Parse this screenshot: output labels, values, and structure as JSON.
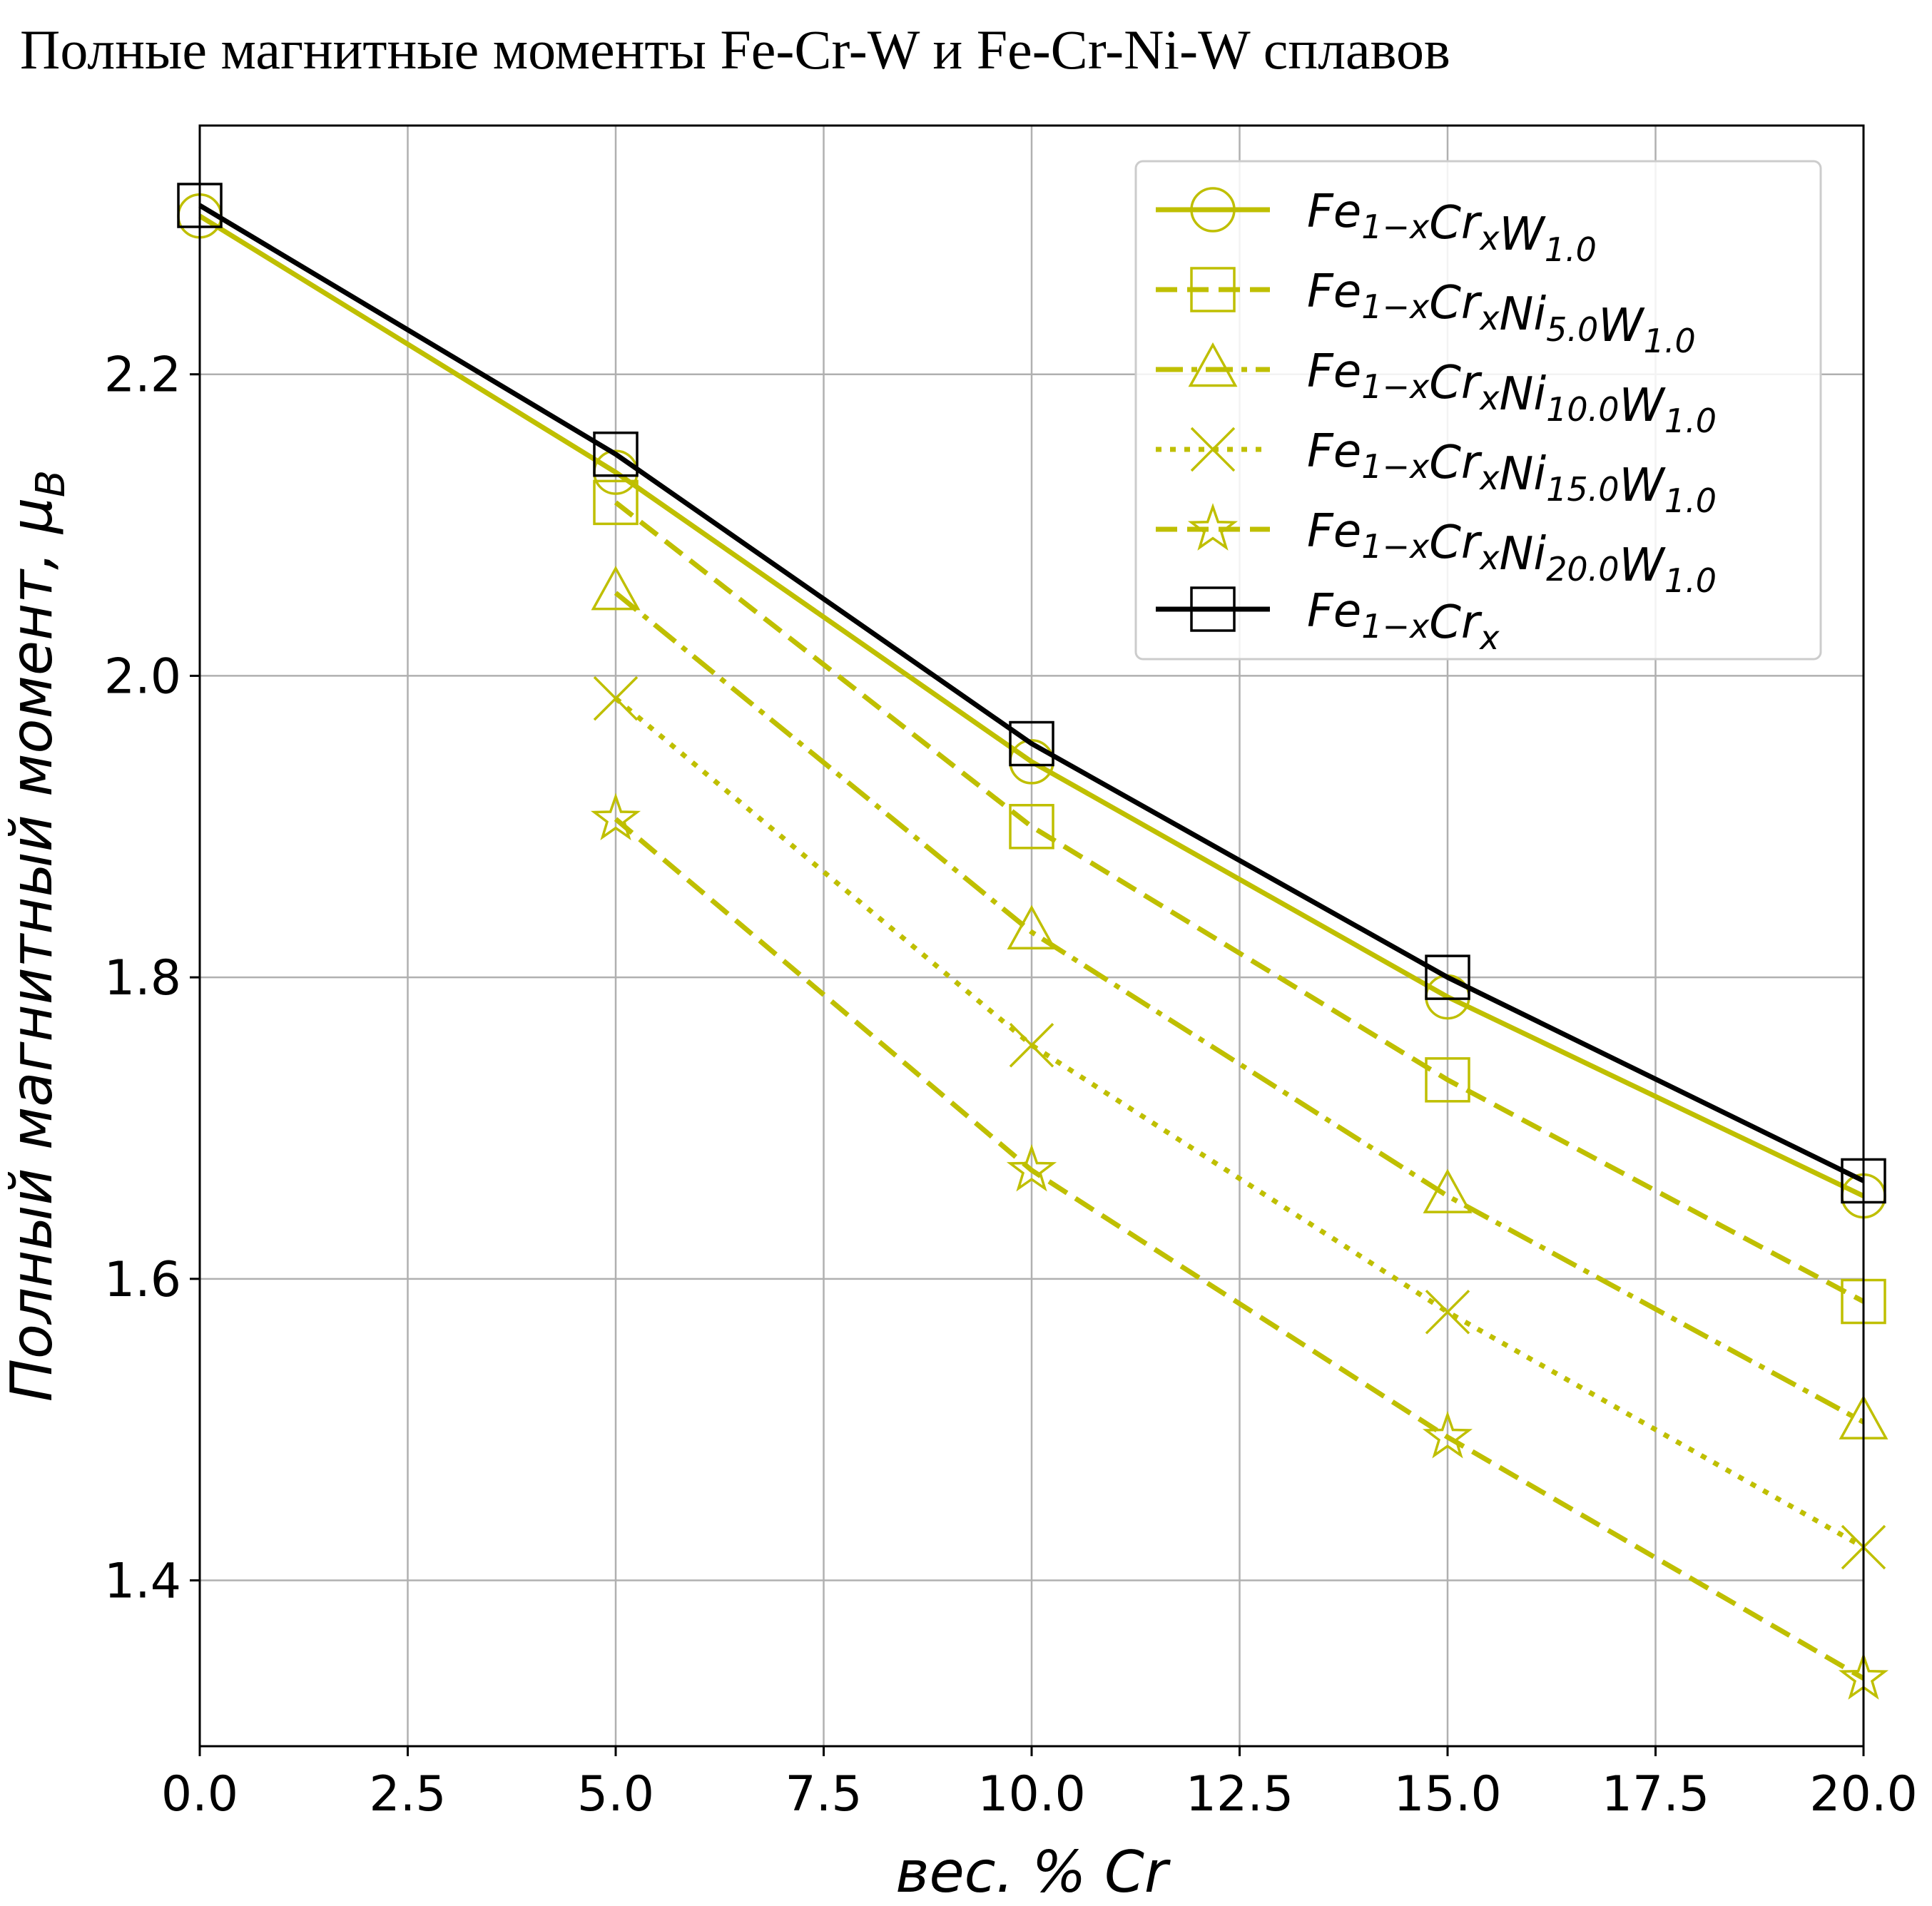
{
  "chart_data": {
    "type": "line",
    "title": "Полные магнитные моменты Fe-Cr-W и Fe-Cr-Ni-W сплавов",
    "xlabel": "вес. % Cr",
    "ylabel": "Полный магнитный момент, μ_B",
    "xlim": [
      0,
      20
    ],
    "ylim": [
      1.29,
      2.365
    ],
    "x_ticks": [
      "0.0",
      "2.5",
      "5.0",
      "7.5",
      "10.0",
      "12.5",
      "15.0",
      "17.5",
      "20.0"
    ],
    "y_ticks": [
      "1.4",
      "1.6",
      "1.8",
      "2.0",
      "2.2"
    ],
    "grid": true,
    "legend_position": "top-right",
    "series": [
      {
        "name": "Fe1−xCrxW1.0",
        "legend_parts": [
          [
            "Fe",
            "1−x"
          ],
          [
            "Cr",
            "x"
          ],
          [
            "W",
            "1.0"
          ]
        ],
        "color": "#bfbf00",
        "linestyle": "solid",
        "marker": "circle",
        "x": [
          0,
          5,
          10,
          15,
          20
        ],
        "y": [
          2.305,
          2.135,
          1.943,
          1.787,
          1.655
        ]
      },
      {
        "name": "Fe1−xCrxNi5.0W1.0",
        "legend_parts": [
          [
            "Fe",
            "1−x"
          ],
          [
            "Cr",
            "x"
          ],
          [
            "Ni",
            "5.0"
          ],
          [
            "W",
            "1.0"
          ]
        ],
        "color": "#bfbf00",
        "linestyle": "dashed",
        "marker": "square",
        "x": [
          5,
          10,
          15,
          20
        ],
        "y": [
          2.115,
          1.9,
          1.732,
          1.585
        ]
      },
      {
        "name": "Fe1−xCrxNi10.0W1.0",
        "legend_parts": [
          [
            "Fe",
            "1−x"
          ],
          [
            "Cr",
            "x"
          ],
          [
            "Ni",
            "10.0"
          ],
          [
            "W",
            "1.0"
          ]
        ],
        "color": "#bfbf00",
        "linestyle": "dashdot",
        "marker": "triangle",
        "x": [
          5,
          10,
          15,
          20
        ],
        "y": [
          2.055,
          1.83,
          1.655,
          1.505
        ]
      },
      {
        "name": "Fe1−xCrxNi15.0W1.0",
        "legend_parts": [
          [
            "Fe",
            "1−x"
          ],
          [
            "Cr",
            "x"
          ],
          [
            "Ni",
            "15.0"
          ],
          [
            "W",
            "1.0"
          ]
        ],
        "color": "#bfbf00",
        "linestyle": "dotted",
        "marker": "x",
        "x": [
          5,
          10,
          15,
          20
        ],
        "y": [
          1.985,
          1.755,
          1.578,
          1.422
        ]
      },
      {
        "name": "Fe1−xCrxNi20.0W1.0",
        "legend_parts": [
          [
            "Fe",
            "1−x"
          ],
          [
            "Cr",
            "x"
          ],
          [
            "Ni",
            "20.0"
          ],
          [
            "W",
            "1.0"
          ]
        ],
        "color": "#bfbf00",
        "linestyle": "dashed",
        "marker": "star",
        "x": [
          5,
          10,
          15,
          20
        ],
        "y": [
          1.905,
          1.672,
          1.495,
          1.335
        ]
      },
      {
        "name": "Fe1−xCrx",
        "legend_parts": [
          [
            "Fe",
            "1−x"
          ],
          [
            "Cr",
            "x"
          ]
        ],
        "color": "#000000",
        "linestyle": "solid",
        "marker": "square",
        "x": [
          0,
          5,
          10,
          15,
          20
        ],
        "y": [
          2.312,
          2.147,
          1.955,
          1.8,
          1.665
        ]
      }
    ]
  }
}
